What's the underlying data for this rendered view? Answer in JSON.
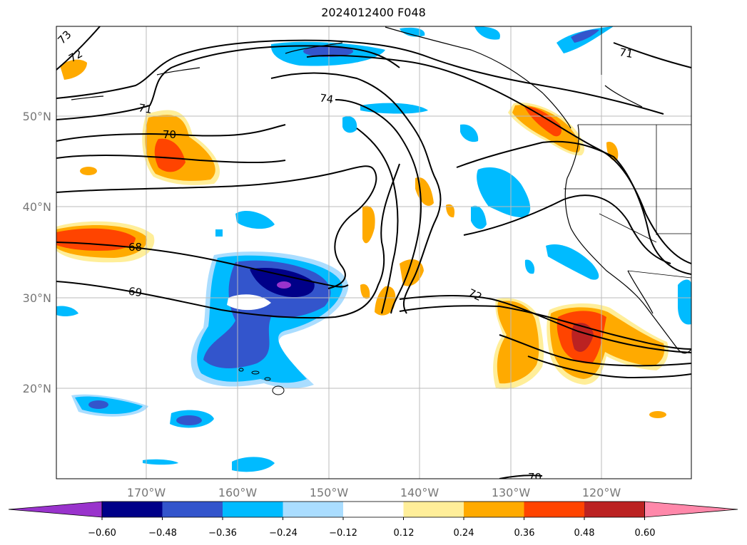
{
  "title": "2024012400 F048",
  "lat_labels": [
    "50°N",
    "40°N",
    "30°N",
    "20°N"
  ],
  "lon_labels": [
    "170°W",
    "160°W",
    "150°W",
    "140°W",
    "130°W",
    "120°W"
  ],
  "contour_labels": [
    "73",
    "72",
    "71",
    "74",
    "70",
    "71",
    "68",
    "69",
    "72",
    "70"
  ],
  "colorbar": {
    "ticks": [
      "−0.60",
      "−0.48",
      "−0.36",
      "−0.24",
      "−0.12",
      "0.12",
      "0.24",
      "0.36",
      "0.48",
      "0.60"
    ],
    "colors": [
      "#9933cc",
      "#000088",
      "#3355cc",
      "#00bbff",
      "#aaddff",
      "#ffffff",
      "#ffee99",
      "#ffaa00",
      "#ff4400",
      "#bb2222",
      "#ff88aa"
    ]
  }
}
